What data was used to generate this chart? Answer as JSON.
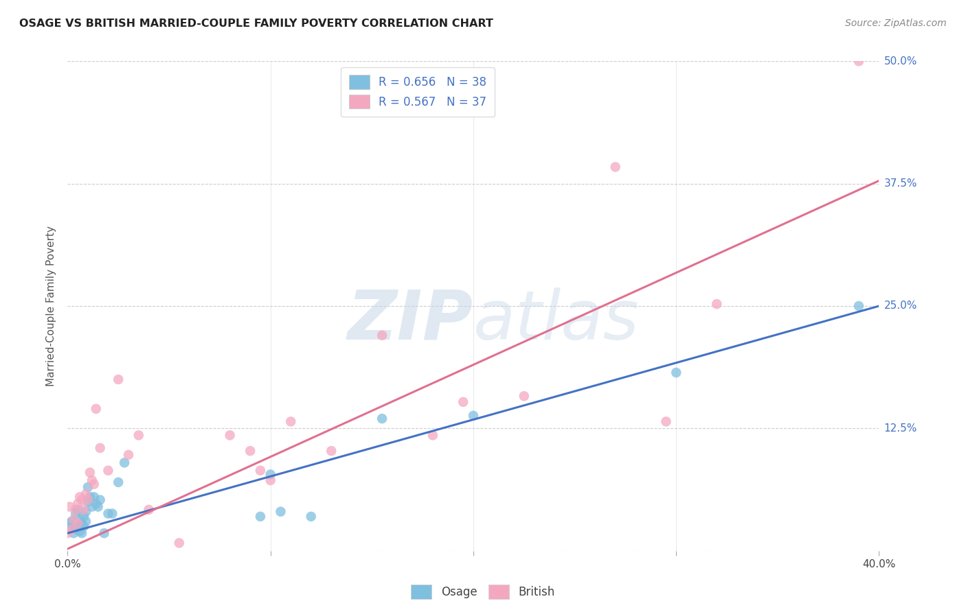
{
  "title": "OSAGE VS BRITISH MARRIED-COUPLE FAMILY POVERTY CORRELATION CHART",
  "source": "Source: ZipAtlas.com",
  "ylabel": "Married-Couple Family Poverty",
  "xlim": [
    0.0,
    0.4
  ],
  "ylim": [
    0.0,
    0.5
  ],
  "xtick_vals": [
    0.0,
    0.1,
    0.2,
    0.3,
    0.4
  ],
  "xtick_labels_shown": [
    "0.0%",
    "",
    "",
    "",
    "40.0%"
  ],
  "ytick_vals": [
    0.0,
    0.125,
    0.25,
    0.375,
    0.5
  ],
  "ytick_right_labels": [
    "",
    "12.5%",
    "25.0%",
    "37.5%",
    "50.0%"
  ],
  "legend_line1": "R = 0.656   N = 38",
  "legend_line2": "R = 0.567   N = 37",
  "osage_color": "#7fbfdf",
  "british_color": "#f4a8c0",
  "osage_line_color": "#4472c4",
  "british_line_color": "#e07090",
  "right_label_color": "#4472c4",
  "watermark_color": "#c8d8e8",
  "osage_points": [
    [
      0.0,
      0.022
    ],
    [
      0.001,
      0.028
    ],
    [
      0.002,
      0.03
    ],
    [
      0.003,
      0.025
    ],
    [
      0.003,
      0.018
    ],
    [
      0.004,
      0.038
    ],
    [
      0.004,
      0.022
    ],
    [
      0.005,
      0.042
    ],
    [
      0.005,
      0.025
    ],
    [
      0.006,
      0.032
    ],
    [
      0.006,
      0.02
    ],
    [
      0.007,
      0.018
    ],
    [
      0.007,
      0.028
    ],
    [
      0.008,
      0.035
    ],
    [
      0.008,
      0.025
    ],
    [
      0.009,
      0.04
    ],
    [
      0.009,
      0.03
    ],
    [
      0.01,
      0.065
    ],
    [
      0.01,
      0.05
    ],
    [
      0.011,
      0.055
    ],
    [
      0.012,
      0.045
    ],
    [
      0.013,
      0.055
    ],
    [
      0.014,
      0.048
    ],
    [
      0.015,
      0.045
    ],
    [
      0.016,
      0.052
    ],
    [
      0.018,
      0.018
    ],
    [
      0.02,
      0.038
    ],
    [
      0.022,
      0.038
    ],
    [
      0.025,
      0.07
    ],
    [
      0.028,
      0.09
    ],
    [
      0.095,
      0.035
    ],
    [
      0.1,
      0.078
    ],
    [
      0.105,
      0.04
    ],
    [
      0.12,
      0.035
    ],
    [
      0.155,
      0.135
    ],
    [
      0.2,
      0.138
    ],
    [
      0.3,
      0.182
    ],
    [
      0.39,
      0.25
    ]
  ],
  "british_points": [
    [
      0.0,
      0.018
    ],
    [
      0.001,
      0.045
    ],
    [
      0.002,
      0.022
    ],
    [
      0.003,
      0.032
    ],
    [
      0.004,
      0.042
    ],
    [
      0.005,
      0.048
    ],
    [
      0.005,
      0.028
    ],
    [
      0.006,
      0.055
    ],
    [
      0.007,
      0.052
    ],
    [
      0.008,
      0.042
    ],
    [
      0.009,
      0.058
    ],
    [
      0.01,
      0.052
    ],
    [
      0.011,
      0.08
    ],
    [
      0.012,
      0.072
    ],
    [
      0.013,
      0.068
    ],
    [
      0.014,
      0.145
    ],
    [
      0.016,
      0.105
    ],
    [
      0.02,
      0.082
    ],
    [
      0.025,
      0.175
    ],
    [
      0.03,
      0.098
    ],
    [
      0.035,
      0.118
    ],
    [
      0.04,
      0.042
    ],
    [
      0.055,
      0.008
    ],
    [
      0.08,
      0.118
    ],
    [
      0.09,
      0.102
    ],
    [
      0.095,
      0.082
    ],
    [
      0.1,
      0.072
    ],
    [
      0.11,
      0.132
    ],
    [
      0.13,
      0.102
    ],
    [
      0.155,
      0.22
    ],
    [
      0.18,
      0.118
    ],
    [
      0.195,
      0.152
    ],
    [
      0.225,
      0.158
    ],
    [
      0.27,
      0.392
    ],
    [
      0.295,
      0.132
    ],
    [
      0.32,
      0.252
    ],
    [
      0.39,
      0.5
    ]
  ],
  "osage_line": {
    "x0": 0.0,
    "y0": 0.018,
    "x1": 0.4,
    "y1": 0.25
  },
  "british_line": {
    "x0": 0.0,
    "y0": 0.002,
    "x1": 0.4,
    "y1": 0.378
  }
}
